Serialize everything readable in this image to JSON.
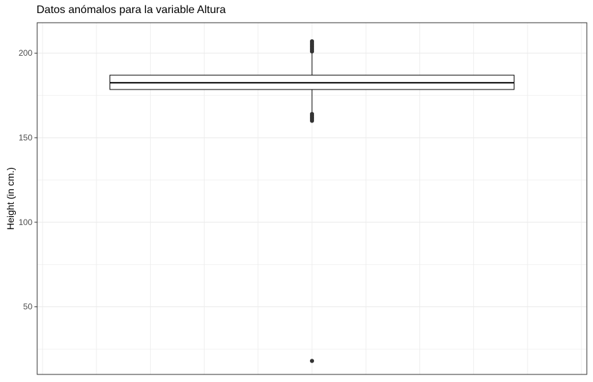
{
  "chart_data": {
    "type": "boxplot",
    "title": "Datos anómalos para la variable Altura",
    "xlabel": "",
    "ylabel": "Height (in cm.)",
    "ylim": [
      10,
      218
    ],
    "yticks": [
      50,
      100,
      150,
      200
    ],
    "y_minor_ticks": [
      25,
      75,
      125,
      175
    ],
    "x_grid_positions": [
      -0.2,
      0.0,
      0.2,
      0.4,
      0.6,
      0.8,
      1.0,
      1.2,
      1.4,
      1.6,
      1.8
    ],
    "xlim": [
      -0.22,
      1.82
    ],
    "grid": true,
    "theme": "bw",
    "box": {
      "x_center": 0.8,
      "x_from": 0.05,
      "x_to": 1.55,
      "q1": 178.5,
      "median": 182.5,
      "q3": 187.0,
      "lower_whisker": 165.0,
      "upper_whisker": 200.5
    },
    "outliers": [
      18,
      160,
      161,
      162,
      163,
      164,
      201,
      202,
      203,
      204,
      205,
      206,
      207
    ],
    "colors": {
      "box_fill": "#ffffff",
      "box_line": "#000000",
      "outlier": "#333333",
      "grid": "#ebebeb",
      "panel_border": "#333333"
    }
  }
}
